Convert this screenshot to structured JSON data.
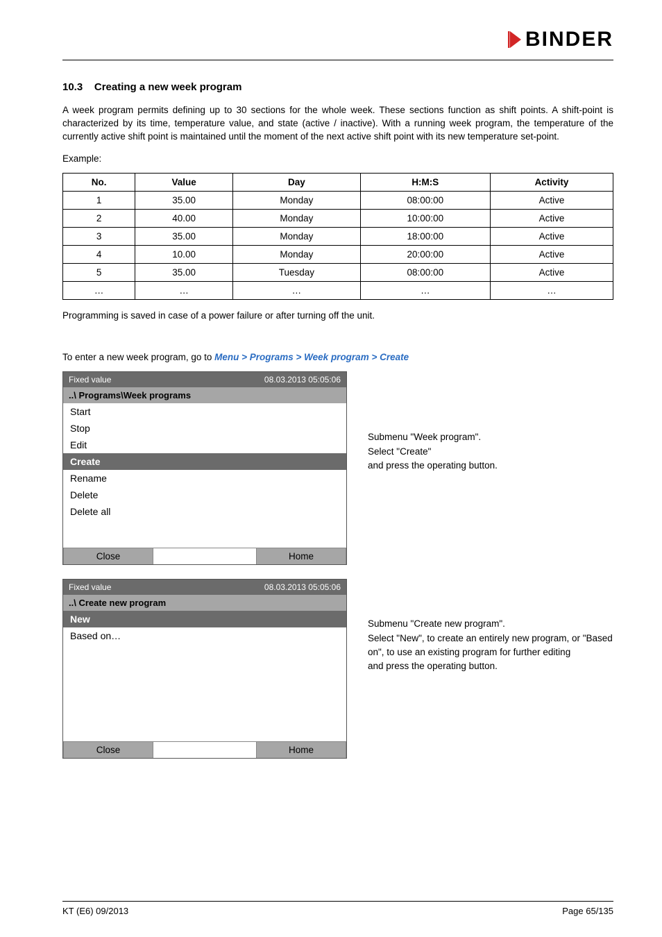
{
  "logo_text": "BINDER",
  "section": {
    "number": "10.3",
    "title": "Creating a new week program"
  },
  "intro_paragraph": "A week program permits defining up to 30 sections for the whole week. These sections function as shift points. A shift-point is characterized by its time, temperature value, and state (active / inactive). With a running week program, the temperature of the currently active shift point is maintained until the moment of the next active shift point with its new temperature set-point.",
  "example_label": "Example:",
  "table": {
    "headers": [
      "No.",
      "Value",
      "Day",
      "H:M:S",
      "Activity"
    ],
    "rows": [
      [
        "1",
        "35.00",
        "Monday",
        "08:00:00",
        "Active"
      ],
      [
        "2",
        "40.00",
        "Monday",
        "10:00:00",
        "Active"
      ],
      [
        "3",
        "35.00",
        "Monday",
        "18:00:00",
        "Active"
      ],
      [
        "4",
        "10.00",
        "Monday",
        "20:00:00",
        "Active"
      ],
      [
        "5",
        "35.00",
        "Tuesday",
        "08:00:00",
        "Active"
      ],
      [
        "…",
        "…",
        "…",
        "…",
        "…"
      ]
    ]
  },
  "post_table_text": "Programming is saved in case of a power failure or after turning off the unit.",
  "nav_text_prefix": "To enter a new week program, go to ",
  "nav_path": "Menu > Programs > Week program > Create",
  "screen1": {
    "title_left": "Fixed value",
    "title_right": "08.03.2013  05:05:06",
    "subtitle": "..\\ Programs\\Week programs",
    "rows": [
      "Start",
      "Stop",
      "Edit",
      "Create",
      "Rename",
      "Delete",
      "Delete all"
    ],
    "highlight_index": 3,
    "btn_close": "Close",
    "btn_home": "Home"
  },
  "side1_line1": "Submenu \"Week program\".",
  "side1_line2": "Select \"Create\"",
  "side1_line3": "and press the operating button.",
  "screen2": {
    "title_left": "Fixed value",
    "title_right": "08.03.2013  05:05:06",
    "subtitle": "..\\ Create new program",
    "rows": [
      "New",
      "Based on…"
    ],
    "highlight_index": 0,
    "btn_close": "Close",
    "btn_home": "Home"
  },
  "side2_line1": "Submenu \"Create new program\".",
  "side2_line2": "Select \"New\", to create an entirely new program, or \"Based on\", to use an existing program for further editing",
  "side2_line3": "and press the operating button.",
  "footer": {
    "left": "KT (E6) 09/2013",
    "right": "Page 65/135"
  },
  "colors": {
    "header_gray": "#6b6b6b",
    "sub_gray": "#a6a6a6",
    "link_blue": "#2a6cc2"
  }
}
